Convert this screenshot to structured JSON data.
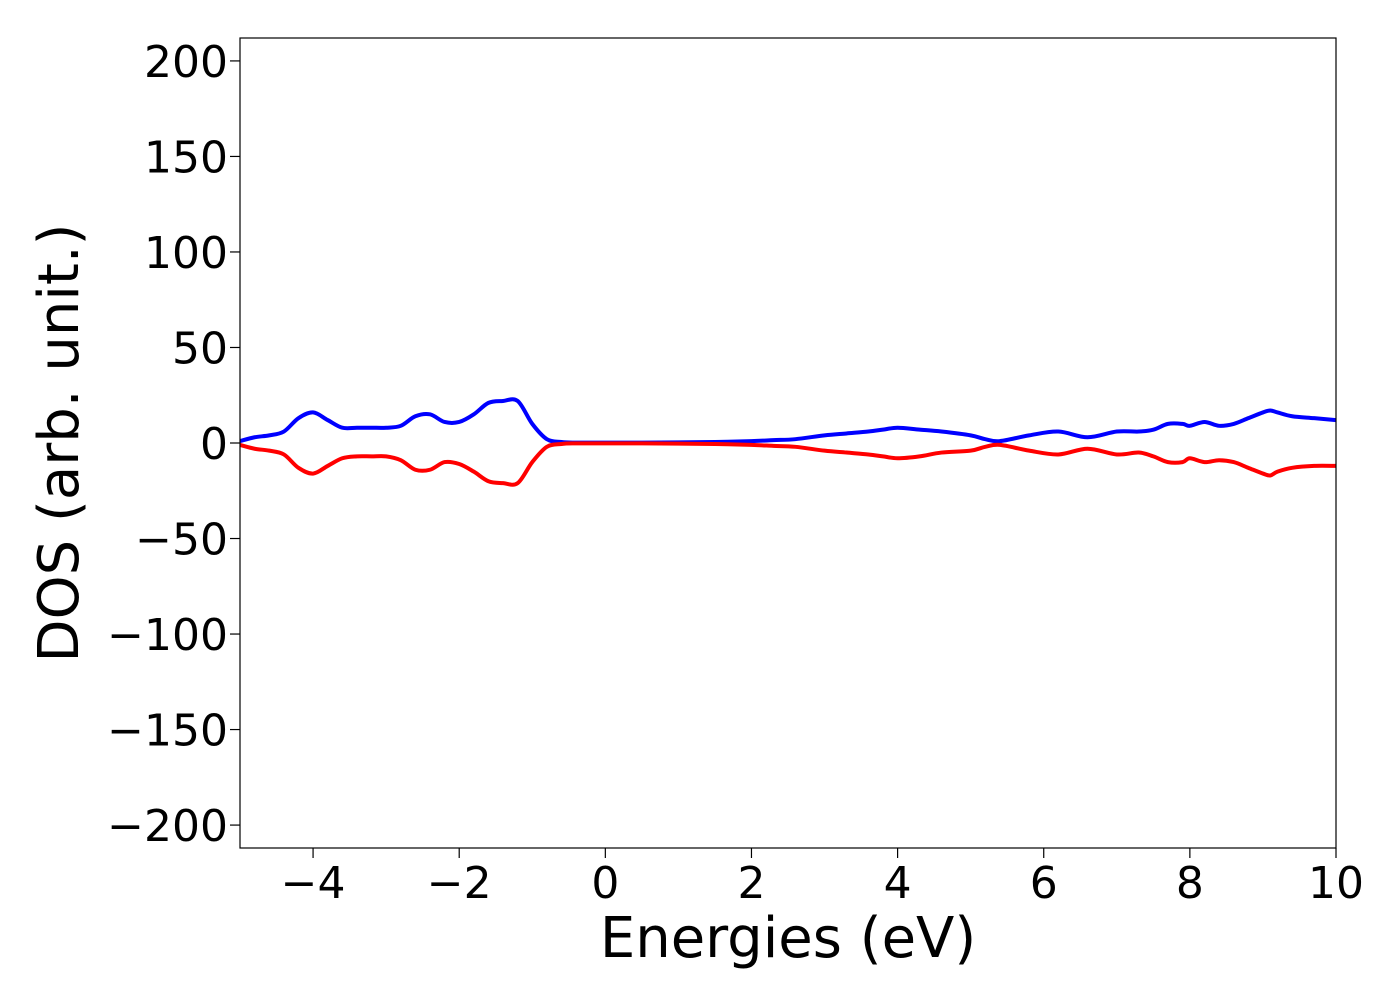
{
  "chart_data": {
    "type": "line",
    "title": "",
    "xlabel": "Energies (eV)",
    "ylabel": "DOS (arb. unit.)",
    "xlim": [
      -5,
      10
    ],
    "ylim": [
      -212,
      212
    ],
    "xticks": [
      -4,
      -2,
      0,
      2,
      4,
      6,
      8,
      10
    ],
    "xtick_labels": [
      "−4",
      "−2",
      "0",
      "2",
      "4",
      "6",
      "8",
      "10"
    ],
    "yticks": [
      200,
      150,
      100,
      50,
      0,
      -50,
      -100,
      -150,
      -200
    ],
    "ytick_labels": [
      "200",
      "150",
      "100",
      "50",
      "0",
      "−50",
      "−100",
      "−150",
      "−200"
    ],
    "grid": false,
    "legend": "none",
    "series": [
      {
        "color": "#0000ff",
        "x": [
          -5.0,
          -4.8,
          -4.6,
          -4.4,
          -4.2,
          -4.0,
          -3.8,
          -3.6,
          -3.4,
          -3.2,
          -3.0,
          -2.8,
          -2.6,
          -2.4,
          -2.2,
          -2.0,
          -1.8,
          -1.6,
          -1.4,
          -1.2,
          -1.0,
          -0.8,
          -0.6,
          -0.4,
          0.0,
          0.5,
          1.0,
          1.5,
          2.0,
          2.3,
          2.6,
          3.0,
          3.3,
          3.6,
          3.8,
          4.0,
          4.3,
          4.6,
          5.0,
          5.2,
          5.4,
          5.8,
          6.2,
          6.6,
          7.0,
          7.3,
          7.5,
          7.7,
          7.9,
          8.0,
          8.2,
          8.4,
          8.6,
          8.8,
          9.0,
          9.1,
          9.2,
          9.4,
          9.7,
          10.0
        ],
        "y": [
          1,
          3,
          4,
          6,
          13,
          16,
          12,
          8,
          8,
          8,
          8,
          9,
          14,
          15,
          11,
          11,
          15,
          21,
          22,
          22,
          10,
          2,
          0.5,
          0.2,
          0.2,
          0.2,
          0.3,
          0.5,
          1,
          1.5,
          2,
          4,
          5,
          6,
          7,
          8,
          7,
          6,
          4,
          2,
          1,
          4,
          6,
          3,
          6,
          6,
          7,
          10,
          10,
          9,
          11,
          9,
          10,
          13,
          16,
          17,
          16,
          14,
          13,
          12
        ]
      },
      {
        "color": "#ff0000",
        "x": [
          -5.0,
          -4.8,
          -4.6,
          -4.4,
          -4.2,
          -4.0,
          -3.8,
          -3.6,
          -3.4,
          -3.2,
          -3.0,
          -2.8,
          -2.6,
          -2.4,
          -2.2,
          -2.0,
          -1.8,
          -1.6,
          -1.4,
          -1.2,
          -1.0,
          -0.8,
          -0.6,
          -0.4,
          0.0,
          0.5,
          1.0,
          1.5,
          2.0,
          2.3,
          2.6,
          3.0,
          3.3,
          3.6,
          3.8,
          4.0,
          4.3,
          4.6,
          5.0,
          5.2,
          5.4,
          5.8,
          6.2,
          6.6,
          7.0,
          7.3,
          7.5,
          7.7,
          7.9,
          8.0,
          8.2,
          8.4,
          8.6,
          8.8,
          9.0,
          9.1,
          9.2,
          9.4,
          9.7,
          10.0
        ],
        "y": [
          -1,
          -3,
          -4,
          -6,
          -13,
          -16,
          -12,
          -8,
          -7,
          -7,
          -7,
          -9,
          -14,
          -14,
          -10,
          -11,
          -15,
          -20,
          -21,
          -21,
          -10,
          -2,
          -0.5,
          -0.2,
          -0.2,
          -0.2,
          -0.3,
          -0.5,
          -1,
          -1.5,
          -2,
          -4,
          -5,
          -6,
          -7,
          -8,
          -7,
          -5,
          -4,
          -2,
          -1,
          -4,
          -6,
          -3,
          -6,
          -5,
          -7,
          -10,
          -10,
          -8,
          -10,
          -9,
          -10,
          -13,
          -16,
          -17,
          -15,
          -13,
          -12,
          -12
        ]
      }
    ]
  }
}
